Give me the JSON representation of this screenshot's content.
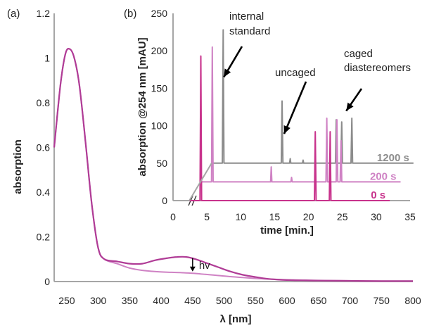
{
  "colors": {
    "axis": "#a6a6a6",
    "magenta": "#b03c96",
    "light_magenta": "#cf82c4",
    "pink_0s": "#c8338c",
    "gray": "#8c8c8c",
    "text": "#222222"
  },
  "chart_data": [
    {
      "type": "line",
      "panel_label": "(a)",
      "xlabel": "λ [nm]",
      "ylabel": "absorption",
      "xlim": [
        230,
        800
      ],
      "ylim": [
        0,
        1.2
      ],
      "x_ticks": [
        250,
        300,
        350,
        400,
        450,
        500,
        550,
        600,
        650,
        700,
        750,
        800
      ],
      "y_ticks": [
        0,
        0.2,
        0.4,
        0.6,
        0.8,
        1,
        1.2
      ],
      "x_tick_labels": [
        "250",
        "300",
        "350",
        "400",
        "450",
        "500",
        "550",
        "600",
        "650",
        "700",
        "750",
        "800"
      ],
      "y_tick_labels": [
        "0",
        "0.2",
        "0.4",
        "0.6",
        "0.8",
        "1",
        "1.2"
      ],
      "grid": false,
      "series": [
        {
          "color": "#b03c96",
          "x": [
            230,
            240,
            248,
            255,
            262,
            270,
            280,
            290,
            300,
            310,
            330,
            350,
            370,
            390,
            410,
            425,
            440,
            455,
            470,
            490,
            510,
            530,
            550,
            570,
            590,
            610,
            630,
            650,
            700,
            750,
            800
          ],
          "y": [
            0.6,
            0.88,
            1.02,
            1.04,
            1.0,
            0.88,
            0.62,
            0.34,
            0.15,
            0.1,
            0.09,
            0.08,
            0.08,
            0.095,
            0.105,
            0.11,
            0.11,
            0.1,
            0.085,
            0.065,
            0.045,
            0.03,
            0.02,
            0.012,
            0.008,
            0.006,
            0.005,
            0.004,
            0.003,
            0.002,
            0.002
          ]
        },
        {
          "color": "#cf82c4",
          "x": [
            230,
            240,
            248,
            255,
            262,
            270,
            280,
            290,
            300,
            310,
            330,
            350,
            370,
            390,
            410,
            430,
            450,
            470,
            490,
            510,
            530,
            550,
            570,
            600,
            650,
            700,
            750,
            800
          ],
          "y": [
            0.6,
            0.88,
            1.02,
            1.04,
            1.0,
            0.88,
            0.62,
            0.34,
            0.15,
            0.1,
            0.08,
            0.06,
            0.05,
            0.045,
            0.042,
            0.04,
            0.037,
            0.032,
            0.027,
            0.022,
            0.018,
            0.014,
            0.011,
            0.008,
            0.005,
            0.003,
            0.002,
            0.002
          ]
        }
      ],
      "annotations": [
        {
          "text": "hv",
          "x": 450,
          "y_from": 0.105,
          "y_to": 0.045
        }
      ]
    },
    {
      "type": "line",
      "panel_label": "(b)",
      "xlabel": "time [min.]",
      "ylabel": "absorption @254 nm [mAU]",
      "xlim": [
        0,
        35
      ],
      "ylim": [
        0,
        250
      ],
      "x_ticks": [
        0,
        5,
        10,
        15,
        20,
        25,
        30,
        35
      ],
      "y_ticks": [
        0,
        50,
        100,
        150,
        200,
        250
      ],
      "x_tick_labels": [
        "0",
        "5",
        "10",
        "15",
        "20",
        "25",
        "30",
        "35"
      ],
      "y_tick_labels": [
        "0",
        "50",
        "100",
        "150",
        "200",
        "250"
      ],
      "grid": false,
      "axis_break": true,
      "series": [
        {
          "name": "0 s",
          "color": "#c8338c",
          "x_offset": 0,
          "baseline": 0,
          "x_end": 32,
          "peaks": [
            [
              4.1,
              193
            ],
            [
              21.0,
              92
            ],
            [
              23.2,
              92
            ]
          ]
        },
        {
          "name": "200 s",
          "color": "#cf82c4",
          "x_offset": 1.7,
          "baseline": 25,
          "x_end": 33.6,
          "peaks": [
            [
              4.1,
              180
            ],
            [
              12.8,
              20
            ],
            [
              15.8,
              6
            ],
            [
              21.0,
              85
            ],
            [
              22.5,
              83
            ],
            [
              23.1,
              55
            ]
          ]
        },
        {
          "name": "1200 s",
          "color": "#8c8c8c",
          "x_offset": 3.3,
          "baseline": 50,
          "x_end": 35.5,
          "peaks": [
            [
              4.1,
              178
            ],
            [
              12.8,
              83
            ],
            [
              14.0,
              6
            ],
            [
              15.9,
              4
            ],
            [
              20.8,
              58
            ],
            [
              21.6,
              55
            ],
            [
              23.1,
              60
            ]
          ]
        }
      ],
      "annotations": [
        {
          "text": "internal standard",
          "lines": [
            "internal",
            "standard"
          ],
          "target_x": 7.4,
          "target_y": 165
        },
        {
          "text": "uncaged",
          "target_x": 16.2,
          "target_y": 108
        },
        {
          "text": "caged diastereomers",
          "lines": [
            "caged",
            "diastereomers"
          ],
          "target_x": 26.4,
          "target_y": 116
        }
      ]
    }
  ]
}
